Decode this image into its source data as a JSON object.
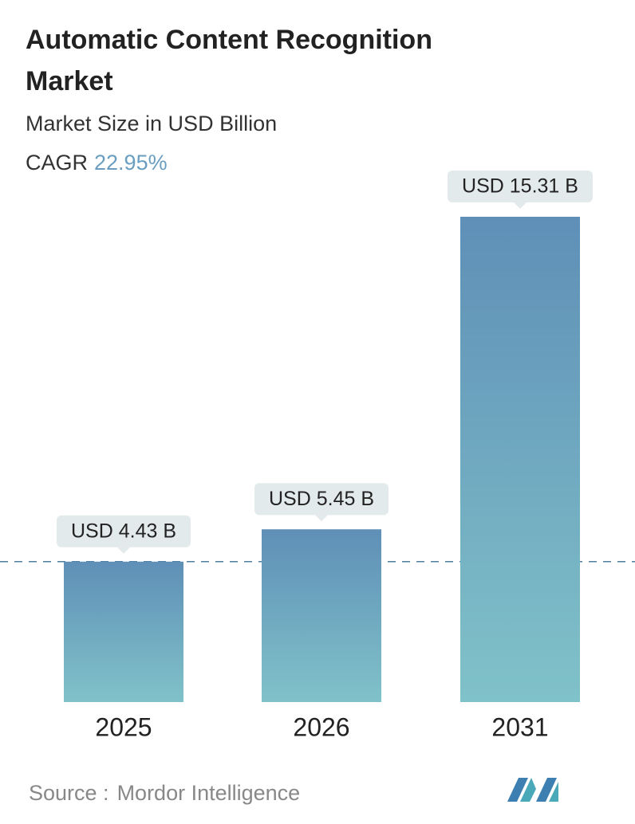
{
  "chart_data": {
    "type": "bar",
    "title": "Automatic Content Recognition Market",
    "subtitle": "Market Size in USD Billion",
    "cagr_label": "CAGR",
    "cagr_value": "22.95%",
    "categories": [
      "2025",
      "2026",
      "2031"
    ],
    "values": [
      4.43,
      5.45,
      15.31
    ],
    "value_labels": [
      "USD 4.43 B",
      "USD 5.45 B",
      "USD 15.31 B"
    ],
    "color": "#6a9ec0",
    "source_label": "Source :",
    "source": "Mordor Intelligence"
  }
}
